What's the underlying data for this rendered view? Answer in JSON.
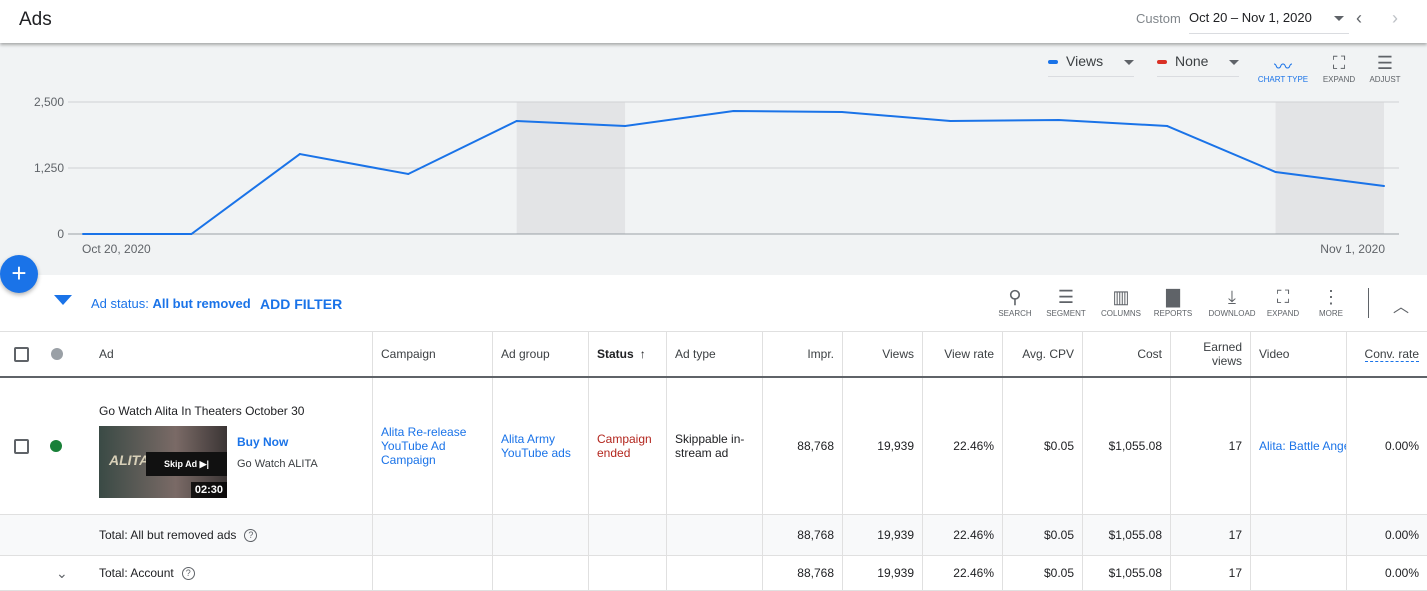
{
  "header": {
    "title": "Ads",
    "date_label": "Custom",
    "date_range": "Oct 20 – Nov 1, 2020"
  },
  "chart_controls": {
    "metric1": "Views",
    "metric1_color": "#1a73e8",
    "metric2": "None",
    "metric2_color": "#d93025",
    "chart_type": "CHART TYPE",
    "expand": "EXPAND",
    "adjust": "ADJUST"
  },
  "chart_data": {
    "type": "line",
    "x": [
      "Oct 20",
      "Oct 21",
      "Oct 22",
      "Oct 23",
      "Oct 24",
      "Oct 25",
      "Oct 26",
      "Oct 27",
      "Oct 28",
      "Oct 29",
      "Oct 30",
      "Oct 31",
      "Nov 1"
    ],
    "series": [
      {
        "name": "Views",
        "values": [
          0,
          0,
          1515,
          1136,
          2140,
          2045,
          2330,
          2310,
          2140,
          2160,
          2045,
          1174,
          909
        ]
      }
    ],
    "y_ticks": [
      "0",
      "1,250",
      "2,500"
    ],
    "ylim": [
      0,
      2500
    ],
    "x_tick_labels": [
      "Oct 20, 2020",
      "Nov 1, 2020"
    ],
    "weekend_shading": [
      [
        4,
        5
      ],
      [
        11,
        12
      ]
    ],
    "grid": true
  },
  "filter": {
    "label": "Ad status:",
    "value": "All but removed",
    "add": "ADD FILTER"
  },
  "toolbar": [
    "SEARCH",
    "SEGMENT",
    "COLUMNS",
    "REPORTS",
    "DOWNLOAD",
    "EXPAND",
    "MORE"
  ],
  "columns": [
    "Ad",
    "Campaign",
    "Ad group",
    "Status",
    "Ad type",
    "Impr.",
    "Views",
    "View rate",
    "Avg. CPV",
    "Cost",
    "Earned views",
    "Video",
    "Conv. rate"
  ],
  "row": {
    "headline": "Go Watch Alita In Theaters October 30",
    "cta": "Buy Now",
    "desc": "Go Watch ALITA",
    "skip": "Skip Ad ▶|",
    "duration": "02:30",
    "thumb_text": "ALITA",
    "campaign": "Alita Re-release YouTube Ad Campaign",
    "ad_group": "Alita Army YouTube ads",
    "status": "Campaign ended",
    "ad_type": "Skippable in-stream ad",
    "impr": "88,768",
    "views": "19,939",
    "view_rate": "22.46%",
    "cpv": "$0.05",
    "cost": "$1,055.08",
    "earned": "17",
    "video": "Alita: Battle Angel",
    "conv": "0.00%"
  },
  "totals": [
    {
      "label": "Total: All but removed ads",
      "impr": "88,768",
      "views": "19,939",
      "view_rate": "22.46%",
      "cpv": "$0.05",
      "cost": "$1,055.08",
      "earned": "17",
      "conv": "0.00%"
    },
    {
      "label": "Total: Account",
      "impr": "88,768",
      "views": "19,939",
      "view_rate": "22.46%",
      "cpv": "$0.05",
      "cost": "$1,055.08",
      "earned": "17",
      "conv": "0.00%"
    }
  ]
}
